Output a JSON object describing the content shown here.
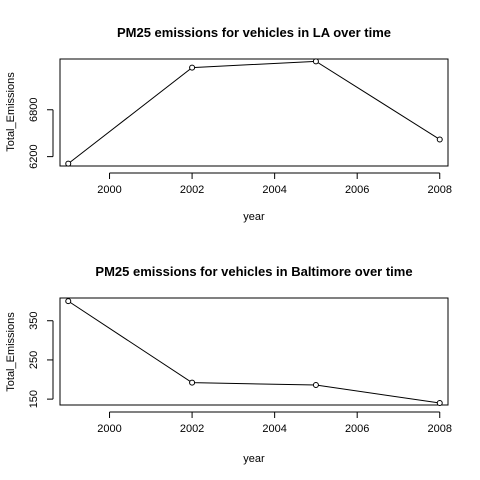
{
  "chart_data": [
    {
      "type": "line",
      "title": "PM25 emissions for vehicles in LA over time",
      "xlabel": "year",
      "ylabel": "Total_Emissions",
      "x": [
        1999,
        2002,
        2005,
        2008
      ],
      "y": [
        6110,
        7340,
        7420,
        6420
      ],
      "xlim": [
        1998.8,
        2008.2
      ],
      "ylim": [
        6080,
        7450
      ],
      "xticks": [
        "2000",
        "2002",
        "2004",
        "2006",
        "2008"
      ],
      "yticks": [
        "6200",
        "6800"
      ],
      "grid": false,
      "markers": "open-circle"
    },
    {
      "type": "line",
      "title": "PM25 emissions for vehicles in Baltimore over time",
      "xlabel": "year",
      "ylabel": "Total_Emissions",
      "x": [
        1999,
        2002,
        2005,
        2008
      ],
      "y": [
        400,
        192,
        186,
        140
      ],
      "xlim": [
        1998.8,
        2008.2
      ],
      "ylim": [
        135,
        408
      ],
      "xticks": [
        "2000",
        "2002",
        "2004",
        "2006",
        "2008"
      ],
      "yticks": [
        "150",
        "250",
        "350"
      ],
      "grid": false,
      "markers": "open-circle"
    }
  ]
}
